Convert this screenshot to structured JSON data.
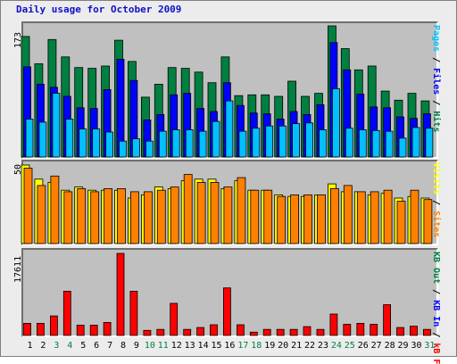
{
  "title": "Daily usage for October 2009",
  "chart_data": {
    "type": "bar",
    "title": "Daily usage for October 2009",
    "x": [
      "1",
      "2",
      "3",
      "4",
      "5",
      "6",
      "7",
      "8",
      "9",
      "10",
      "11",
      "12",
      "13",
      "14",
      "15",
      "16",
      "17",
      "18",
      "19",
      "20",
      "21",
      "22",
      "23",
      "24",
      "25",
      "26",
      "27",
      "28",
      "29",
      "30",
      "31"
    ],
    "weekend_days": [
      "3",
      "4",
      "10",
      "11",
      "17",
      "18",
      "24",
      "25",
      "31"
    ],
    "panels": [
      {
        "ymax_label": "173",
        "ylim": [
          0,
          173
        ],
        "series": [
          {
            "name": "Hits",
            "color": "#008040",
            "values": [
              159,
              123,
              155,
              132,
              118,
              117,
              120,
              154,
              126,
              79,
              96,
              118,
              117,
              112,
              98,
              132,
              81,
              82,
              82,
              80,
              100,
              80,
              84,
              173,
              143,
              115,
              120,
              87,
              75,
              84,
              74
            ]
          },
          {
            "name": "Files",
            "color": "#0000ff",
            "values": [
              119,
              96,
              92,
              80,
              65,
              64,
              89,
              129,
              101,
              49,
              56,
              82,
              84,
              64,
              60,
              98,
              68,
              58,
              57,
              50,
              60,
              56,
              69,
              151,
              115,
              83,
              66,
              65,
              53,
              51,
              57
            ]
          },
          {
            "name": "Pages",
            "color": "#00c0ff",
            "values": [
              50,
              46,
              84,
              50,
              37,
              37,
              33,
              21,
              24,
              21,
              34,
              36,
              36,
              34,
              47,
              74,
              34,
              38,
              41,
              41,
              44,
              45,
              36,
              90,
              38,
              36,
              35,
              34,
              25,
              39,
              38
            ]
          }
        ]
      },
      {
        "ymax_label": "50",
        "ylim": [
          0,
          50
        ],
        "series": [
          {
            "name": "Visits",
            "color": "#ffff00",
            "values": [
              50,
              41,
              39,
              34,
              36,
              34,
              34,
              34,
              29,
              31,
              36,
              35,
              40,
              41,
              41,
              35,
              40,
              34,
              34,
              31,
              30,
              30,
              31,
              38,
              33,
              33,
              31,
              32,
              29,
              30,
              29
            ]
          },
          {
            "name": "Sites",
            "color": "#ff8000",
            "values": [
              48,
              37,
              43,
              33,
              35,
              33,
              35,
              35,
              33,
              33,
              34,
              36,
              44,
              39,
              39,
              36,
              42,
              34,
              34,
              30,
              31,
              31,
              31,
              35,
              37,
              33,
              33,
              34,
              27,
              34,
              28
            ]
          }
        ]
      },
      {
        "ymax_label": "17611",
        "ylim": [
          0,
          17611
        ],
        "series": [
          {
            "name": "KB F",
            "color": "#ff0000",
            "values": [
              2600,
              2600,
              4200,
              9500,
              2200,
              2200,
              2800,
              17611,
              9500,
              1100,
              1300,
              6900,
              1300,
              1700,
              2300,
              10200,
              2300,
              700,
              1300,
              1300,
              1300,
              1900,
              1300,
              4600,
              2400,
              2600,
              2400,
              6600,
              1700,
              2000,
              1300
            ]
          },
          {
            "name": "KB In",
            "color": "#0000ff",
            "values": []
          },
          {
            "name": "KB Out",
            "color": "#008040",
            "values": []
          }
        ]
      }
    ],
    "right_labels": {
      "top": [
        {
          "text": "Pages",
          "color": "#00c0ff"
        },
        {
          "text": " / ",
          "color": "#000000"
        },
        {
          "text": "Files",
          "color": "#0000ff"
        },
        {
          "text": " / ",
          "color": "#000000"
        },
        {
          "text": "Hits",
          "color": "#008040"
        }
      ],
      "mid": [
        {
          "text": "Visits",
          "color": "#ffff00"
        },
        {
          "text": " / ",
          "color": "#000000"
        },
        {
          "text": "Sites",
          "color": "#ff8000"
        }
      ],
      "bot": [
        {
          "text": "KB Out",
          "color": "#008040"
        },
        {
          "text": " / ",
          "color": "#000000"
        },
        {
          "text": "KB In",
          "color": "#0000ff"
        },
        {
          "text": " / ",
          "color": "#000000"
        },
        {
          "text": "kB F",
          "color": "#ff0000"
        }
      ]
    }
  },
  "colors": {
    "weekday_label": "#000000",
    "weekend_label": "#008040"
  }
}
